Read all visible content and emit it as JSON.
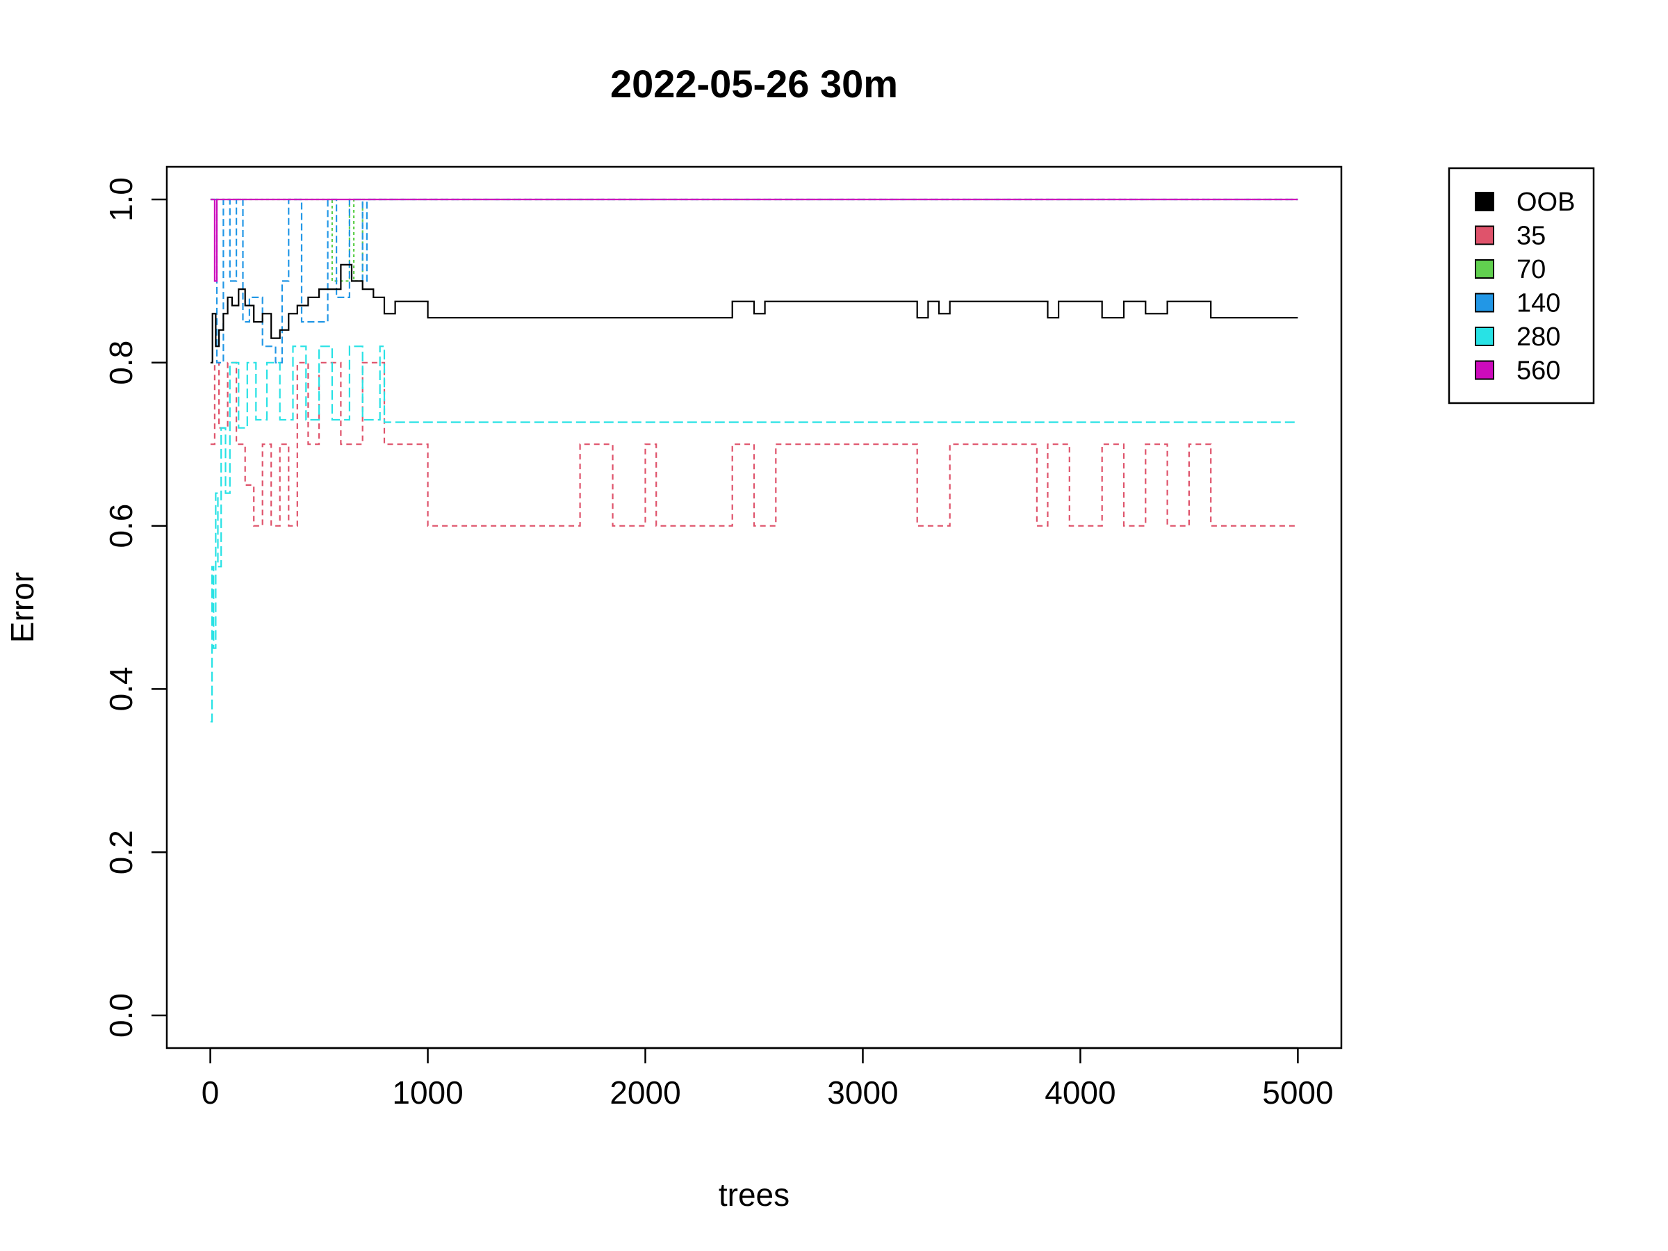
{
  "chart_data": {
    "type": "line",
    "title": "2022-05-26 30m",
    "xlabel": "trees",
    "ylabel": "Error",
    "xlim": [
      -200,
      5200
    ],
    "ylim": [
      -0.04,
      1.04
    ],
    "x_ticks": [
      0,
      1000,
      2000,
      3000,
      4000,
      5000
    ],
    "x_tick_labels": [
      "0",
      "1000",
      "2000",
      "3000",
      "4000",
      "5000"
    ],
    "y_ticks": [
      0.0,
      0.2,
      0.4,
      0.6,
      0.8,
      1.0
    ],
    "y_tick_labels": [
      "0.0",
      "0.2",
      "0.4",
      "0.6",
      "0.8",
      "1.0"
    ],
    "grid": false,
    "legend_position": "outside-top-right",
    "series": [
      {
        "name": "OOB",
        "color": "#000000",
        "dash": "solid",
        "x": [
          1,
          10,
          25,
          40,
          60,
          80,
          100,
          130,
          160,
          200,
          240,
          280,
          320,
          360,
          400,
          450,
          500,
          550,
          600,
          650,
          700,
          750,
          800,
          850,
          1000,
          1650,
          1700,
          1850,
          2000,
          2050,
          2400,
          2450,
          2500,
          2550,
          2600,
          2650,
          3250,
          3300,
          3350,
          3400,
          3800,
          3850,
          3900,
          4050,
          4100,
          4200,
          4300,
          4400,
          4500,
          4600,
          5000
        ],
        "y": [
          0.8,
          0.86,
          0.82,
          0.84,
          0.86,
          0.88,
          0.87,
          0.89,
          0.87,
          0.85,
          0.86,
          0.83,
          0.84,
          0.86,
          0.87,
          0.88,
          0.89,
          0.89,
          0.92,
          0.9,
          0.89,
          0.88,
          0.86,
          0.875,
          0.855,
          0.855,
          0.855,
          0.855,
          0.855,
          0.855,
          0.875,
          0.875,
          0.86,
          0.875,
          0.875,
          0.875,
          0.855,
          0.875,
          0.86,
          0.875,
          0.875,
          0.855,
          0.875,
          0.875,
          0.855,
          0.875,
          0.86,
          0.875,
          0.875,
          0.855,
          0.855
        ]
      },
      {
        "name": "35",
        "color": "#DF536B",
        "dash": "8,6",
        "x": [
          1,
          20,
          40,
          80,
          120,
          160,
          200,
          240,
          280,
          320,
          360,
          400,
          450,
          500,
          600,
          700,
          800,
          850,
          1000,
          1650,
          1700,
          1850,
          2000,
          2050,
          2400,
          2500,
          2600,
          2650,
          3250,
          3400,
          3800,
          3850,
          3950,
          4100,
          4200,
          4300,
          4400,
          4500,
          4600,
          5000
        ],
        "y": [
          0.7,
          0.8,
          0.72,
          0.8,
          0.7,
          0.65,
          0.6,
          0.7,
          0.6,
          0.7,
          0.6,
          0.8,
          0.7,
          0.8,
          0.7,
          0.8,
          0.7,
          0.7,
          0.6,
          0.6,
          0.7,
          0.6,
          0.7,
          0.6,
          0.7,
          0.6,
          0.7,
          0.7,
          0.6,
          0.7,
          0.6,
          0.7,
          0.6,
          0.7,
          0.6,
          0.7,
          0.6,
          0.7,
          0.6,
          0.6
        ]
      },
      {
        "name": "70",
        "color": "#61D04F",
        "dash": "4,4",
        "x": [
          1,
          30,
          100,
          540,
          560,
          640,
          660,
          700,
          5000
        ],
        "y": [
          1.0,
          1.0,
          1.0,
          1.0,
          0.9,
          1.0,
          0.9,
          1.0,
          1.0
        ]
      },
      {
        "name": "140",
        "color": "#2297E6",
        "dash": "10,5",
        "x": [
          1,
          30,
          60,
          90,
          120,
          150,
          180,
          240,
          300,
          330,
          360,
          420,
          540,
          580,
          640,
          700,
          720,
          5000
        ],
        "y": [
          1.0,
          0.8,
          1.0,
          0.9,
          1.0,
          0.85,
          0.88,
          0.82,
          0.8,
          0.9,
          1.0,
          0.85,
          1.0,
          0.88,
          1.0,
          0.9,
          1.0,
          1.0
        ]
      },
      {
        "name": "280",
        "color": "#28E2E5",
        "dash": "14,6",
        "x": [
          1,
          8,
          15,
          25,
          35,
          50,
          70,
          90,
          130,
          170,
          210,
          260,
          320,
          380,
          440,
          500,
          560,
          640,
          700,
          780,
          800,
          5000
        ],
        "y": [
          0.36,
          0.55,
          0.45,
          0.64,
          0.55,
          0.72,
          0.64,
          0.8,
          0.72,
          0.8,
          0.73,
          0.8,
          0.73,
          0.82,
          0.73,
          0.82,
          0.73,
          0.82,
          0.73,
          0.82,
          0.727,
          0.727
        ]
      },
      {
        "name": "560",
        "color": "#CD0BBC",
        "dash": "solid",
        "x": [
          1,
          20,
          30,
          40,
          5000
        ],
        "y": [
          1.0,
          0.9,
          1.0,
          1.0,
          1.0
        ]
      }
    ]
  }
}
